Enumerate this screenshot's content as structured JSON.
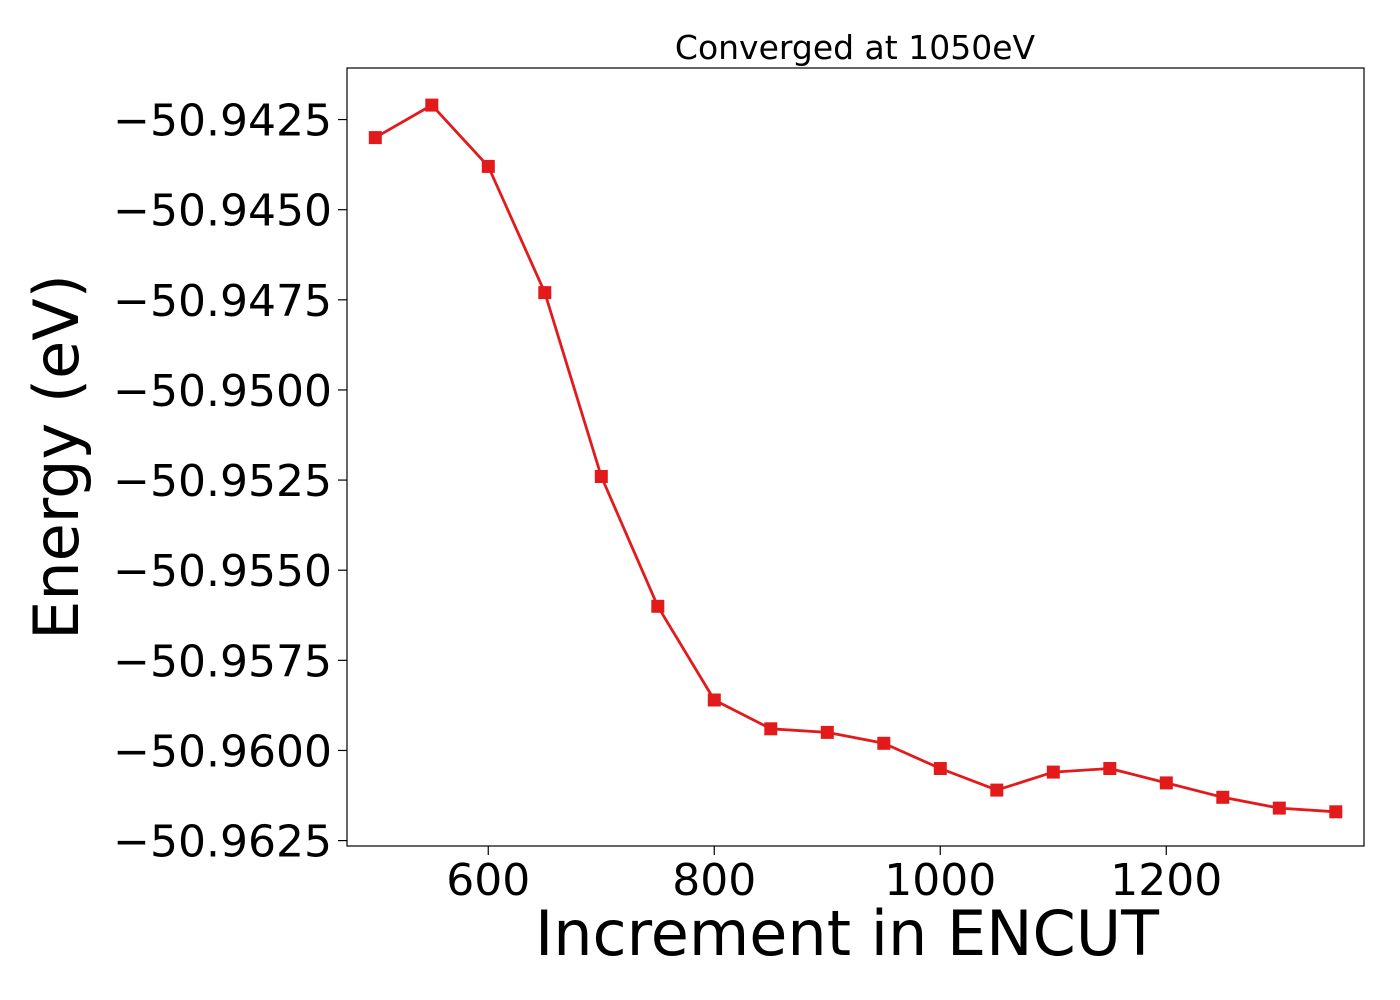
{
  "chart_data": {
    "type": "line",
    "title": "Converged at 1050eV",
    "xlabel": "Increment in ENCUT",
    "ylabel": "Energy (eV)",
    "x": [
      500,
      550,
      600,
      650,
      700,
      750,
      800,
      850,
      900,
      950,
      1000,
      1050,
      1100,
      1150,
      1200,
      1250,
      1300,
      1350
    ],
    "series": [
      {
        "values": [
          -50.943,
          -50.9421,
          -50.9438,
          -50.9473,
          -50.9524,
          -50.956,
          -50.9586,
          -50.9594,
          -50.9595,
          -50.9598,
          -50.9605,
          -50.9611,
          -50.9606,
          -50.9605,
          -50.9609,
          -50.9613,
          -50.9616,
          -50.9617
        ],
        "color": "#e31a1c",
        "marker": "square"
      }
    ],
    "xlim": [
      475,
      1375
    ],
    "ylim": [
      -50.96265,
      -50.94107
    ],
    "xticks": [
      600,
      800,
      1000,
      1200
    ],
    "xtick_labels": [
      "600",
      "800",
      "1000",
      "1200"
    ],
    "yticks": [
      -50.9425,
      -50.945,
      -50.9475,
      -50.95,
      -50.9525,
      -50.955,
      -50.9575,
      -50.96,
      -50.9625
    ],
    "ytick_labels": [
      "−50.9425",
      "−50.9450",
      "−50.9475",
      "−50.9500",
      "−50.9525",
      "−50.9550",
      "−50.9575",
      "−50.9600",
      "−50.9625"
    ],
    "grid": false,
    "legend": "none"
  }
}
